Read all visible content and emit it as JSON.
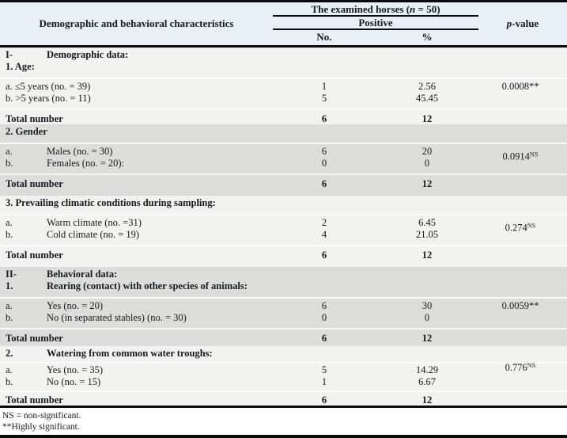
{
  "header": {
    "characteristics": "Demographic and behavioral characteristics",
    "group": {
      "title_pre": "The examined horses (",
      "title_italic": "n",
      "title_post": " = 50)",
      "positive": "Positive",
      "col_no": "No.",
      "col_pct": "%"
    },
    "pvalue": {
      "italic": "p",
      "rest": "-value"
    }
  },
  "sections": [
    {
      "headings": [
        {
          "marker": "I-",
          "text": "Demographic data:"
        },
        {
          "text": "1. Age:"
        }
      ],
      "rows": [
        {
          "label": "a. ≤5 years (no. = 39)",
          "no": "1",
          "pct": "2.56"
        },
        {
          "label": "b. >5 years (no. = 11)",
          "no": "5",
          "pct": "45.45"
        }
      ],
      "p": {
        "value": "0.0008**",
        "sup": ""
      },
      "total": {
        "label": "Total number",
        "no": "6",
        "pct": "12"
      }
    },
    {
      "headings": [
        {
          "text": "2. Gender"
        }
      ],
      "rows": [
        {
          "marker": "a.",
          "label": "Males (no. = 30)",
          "no": "6",
          "pct": "20"
        },
        {
          "marker": "b.",
          "label": "Females (no. = 20):",
          "no": "0",
          "pct": "0"
        }
      ],
      "p": {
        "value": "0.0914",
        "sup": "NS"
      },
      "total": {
        "label": "Total number",
        "no": "6",
        "pct": "12"
      }
    },
    {
      "headings": [
        {
          "text": "3. Prevailing climatic conditions during sampling:"
        }
      ],
      "rows": [
        {
          "marker": "a.",
          "label": "Warm climate (no. =31)",
          "no": "2",
          "pct": "6.45"
        },
        {
          "marker": "b.",
          "label": "Cold climate (no. = 19)",
          "no": "4",
          "pct": "21.05"
        }
      ],
      "p": {
        "value": "0.274",
        "sup": "NS"
      },
      "total": {
        "label": "Total number",
        "no": "6",
        "pct": "12"
      }
    },
    {
      "headings": [
        {
          "marker": "II-",
          "text": "Behavioral data:"
        },
        {
          "marker": "1.",
          "text": "Rearing (contact) with other species of animals:"
        }
      ],
      "rows": [
        {
          "marker": "a.",
          "label": "Yes (no. = 20)",
          "no": "6",
          "pct": "30"
        },
        {
          "marker": "b.",
          "label": "No (in separated stables) (no. = 30)",
          "no": "0",
          "pct": "0"
        }
      ],
      "p": {
        "value": "0.0059**",
        "sup": ""
      },
      "total": {
        "label": "Total number",
        "no": "6",
        "pct": "12"
      }
    },
    {
      "headings": [
        {
          "marker": "2.",
          "text": "Watering from common water troughs:"
        }
      ],
      "rows": [
        {
          "marker": "a.",
          "label": "Yes (no. = 35)",
          "no": "5",
          "pct": "14.29"
        },
        {
          "marker": "b.",
          "label": "No (no. = 15)",
          "no": "1",
          "pct": "6.67"
        }
      ],
      "p": {
        "value": "0.776",
        "sup": "NS"
      },
      "total": {
        "label": "Total number",
        "no": "6",
        "pct": "12"
      }
    }
  ],
  "footnotes": [
    "NS = non-significant.",
    "**Highly significant."
  ],
  "colors": {
    "header_bg": "#e7f0f7",
    "light_section_bg": "#f2f2f0",
    "gray_section_bg": "#dcdddb",
    "rule": "#0a0a0a"
  }
}
